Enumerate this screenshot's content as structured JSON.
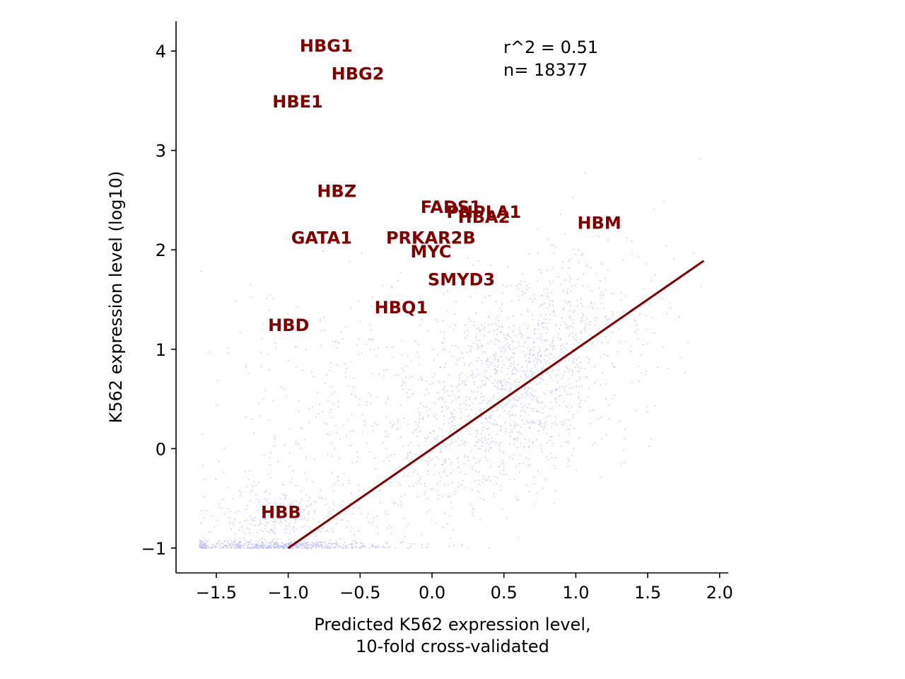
{
  "chart_data": {
    "type": "scatter",
    "title": "",
    "xlabel_lines": [
      "Predicted K562 expression level,",
      "10-fold cross-validated"
    ],
    "ylabel": "K562 expression level (log10)",
    "xlim": [
      -1.78,
      2.06
    ],
    "ylim": [
      -1.25,
      4.3
    ],
    "xticks": [
      -1.5,
      -1.0,
      -0.5,
      0.0,
      0.5,
      1.0,
      1.5,
      2.0
    ],
    "xtick_labels": [
      "−1.5",
      "−1.0",
      "−0.5",
      "0.0",
      "0.5",
      "1.0",
      "1.5",
      "2.0"
    ],
    "yticks": [
      -1,
      0,
      1,
      2,
      3,
      4
    ],
    "ytick_labels": [
      "−1",
      "0",
      "1",
      "2",
      "3",
      "4"
    ],
    "grid": false,
    "point_color": "#0000ff",
    "fit_line_color": "#800000",
    "label_color": "#800000",
    "n_points": 18377,
    "stats": [
      "r^2 = 0.51",
      "n= 18377"
    ],
    "fit_line": {
      "x": [
        -1.0,
        1.89
      ],
      "y": [
        -1.0,
        1.89
      ]
    },
    "labeled_genes": [
      {
        "name": "HBG1",
        "x": -0.92,
        "y": 4.05
      },
      {
        "name": "HBG2",
        "x": -0.7,
        "y": 3.77
      },
      {
        "name": "HBE1",
        "x": -1.11,
        "y": 3.49
      },
      {
        "name": "HBZ",
        "x": -0.8,
        "y": 2.59
      },
      {
        "name": "FADS1",
        "x": -0.08,
        "y": 2.43
      },
      {
        "name": "PNPLA1",
        "x": 0.1,
        "y": 2.38
      },
      {
        "name": "HBA2",
        "x": 0.18,
        "y": 2.33
      },
      {
        "name": "HBM",
        "x": 1.01,
        "y": 2.27
      },
      {
        "name": "GATA1",
        "x": -0.98,
        "y": 2.12
      },
      {
        "name": "PRKAR2B",
        "x": -0.32,
        "y": 2.12
      },
      {
        "name": "MYC",
        "x": -0.15,
        "y": 1.98
      },
      {
        "name": "SMYD3",
        "x": -0.03,
        "y": 1.7
      },
      {
        "name": "HBQ1",
        "x": -0.4,
        "y": 1.42
      },
      {
        "name": "HBD",
        "x": -1.14,
        "y": 1.24
      },
      {
        "name": "HBB",
        "x": -1.19,
        "y": -0.64
      }
    ]
  }
}
